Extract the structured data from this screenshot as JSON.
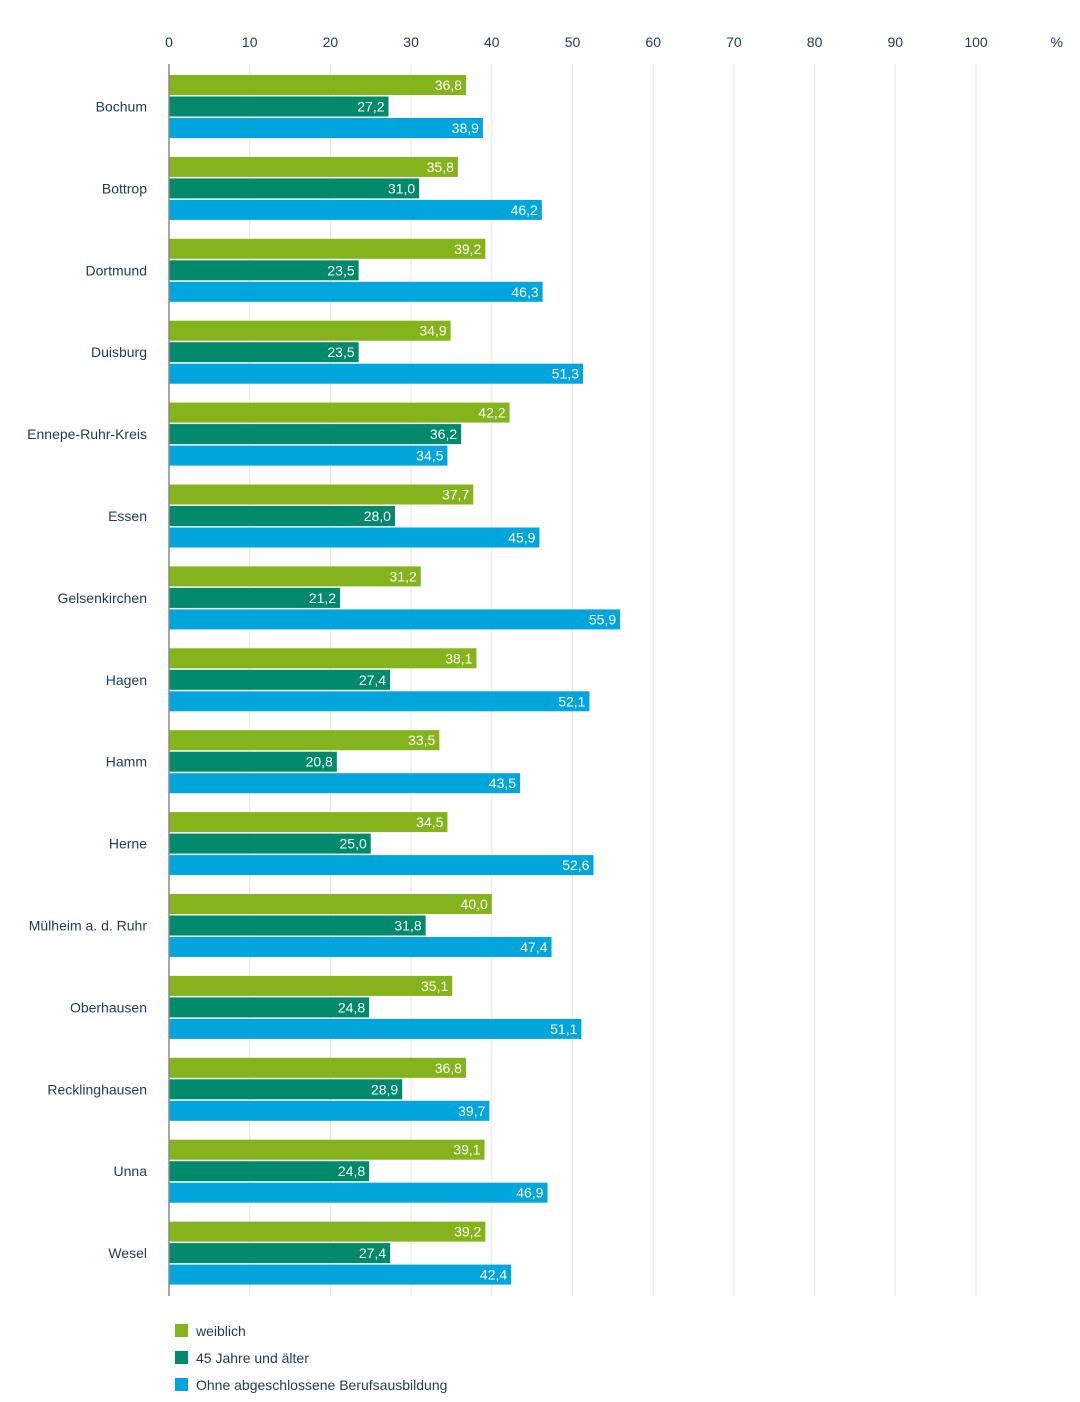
{
  "chart_data": {
    "type": "bar",
    "orientation": "horizontal",
    "x_axis_unit": "%",
    "xlim": [
      0,
      110
    ],
    "x_ticks": [
      0,
      10,
      20,
      30,
      40,
      50,
      60,
      70,
      80,
      90,
      100
    ],
    "grid": true,
    "legend_position": "bottom-left",
    "categories": [
      "Bochum",
      "Bottrop",
      "Dortmund",
      "Duisburg",
      "Ennepe-Ruhr-Kreis",
      "Essen",
      "Gelsenkirchen",
      "Hagen",
      "Hamm",
      "Herne",
      "Mülheim a. d. Ruhr",
      "Oberhausen",
      "Recklinghausen",
      "Unna",
      "Wesel"
    ],
    "series": [
      {
        "name": "weiblich",
        "color": "#84b31b",
        "values": [
          36.8,
          35.8,
          39.2,
          34.9,
          42.2,
          37.7,
          31.2,
          38.1,
          33.5,
          34.5,
          40.0,
          35.1,
          36.8,
          39.1,
          39.2
        ],
        "labels": [
          "36,8",
          "35,8",
          "39,2",
          "34,9",
          "42,2",
          "37,7",
          "31,2",
          "38,1",
          "33,5",
          "34,5",
          "40,0",
          "35,1",
          "36,8",
          "39,1",
          "39,2"
        ]
      },
      {
        "name": "45 Jahre und älter",
        "color": "#00896a",
        "values": [
          27.2,
          31.0,
          23.5,
          23.5,
          36.2,
          28.0,
          21.2,
          27.4,
          20.8,
          25.0,
          31.8,
          24.8,
          28.9,
          24.8,
          27.4
        ],
        "labels": [
          "27,2",
          "31,0",
          "23,5",
          "23,5",
          "36,2",
          "28,0",
          "21,2",
          "27,4",
          "20,8",
          "25,0",
          "31,8",
          "24,8",
          "28,9",
          "24,8",
          "27,4"
        ]
      },
      {
        "name": "Ohne abgeschlossene Berufsausbildung",
        "color": "#00a5dc",
        "values": [
          38.9,
          46.2,
          46.3,
          51.3,
          34.5,
          45.9,
          55.9,
          52.1,
          43.5,
          52.6,
          47.4,
          51.1,
          39.7,
          46.9,
          42.4
        ],
        "labels": [
          "38,9",
          "46,2",
          "46,3",
          "51,3",
          "34,5",
          "45,9",
          "55,9",
          "52,1",
          "43,5",
          "52,6",
          "47,4",
          "51,1",
          "39,7",
          "46,9",
          "42,4"
        ]
      }
    ]
  }
}
